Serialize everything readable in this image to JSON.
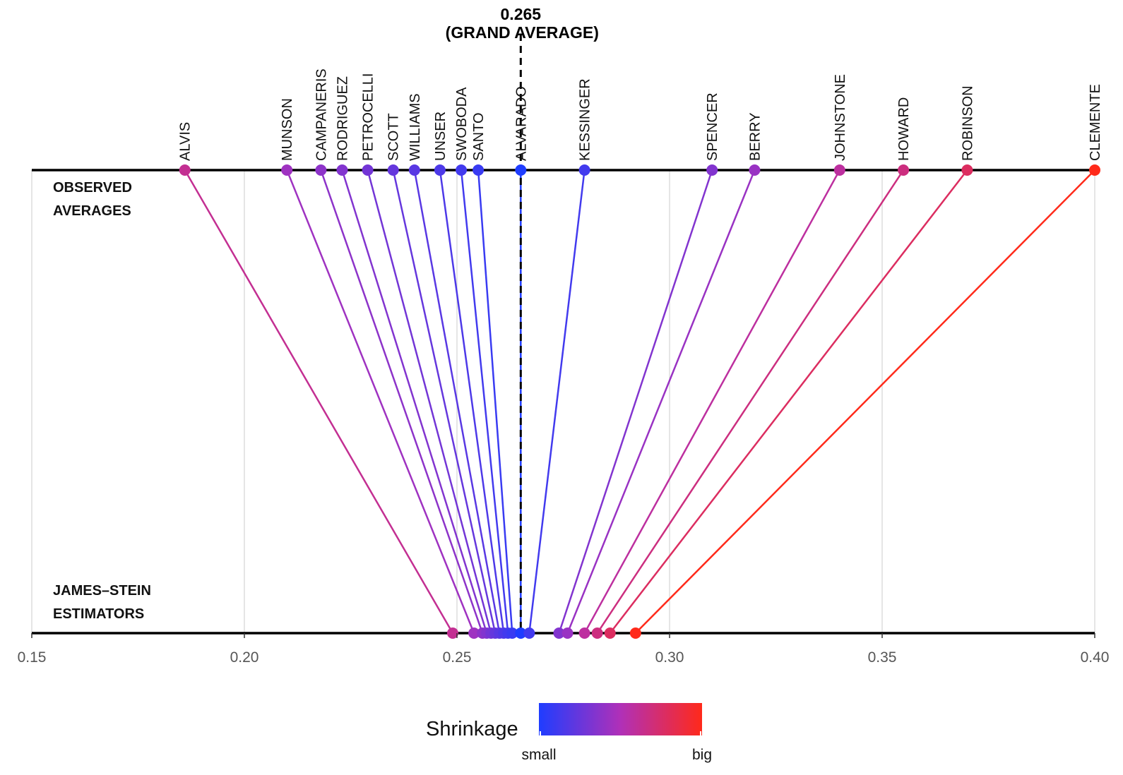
{
  "chart_data": {
    "type": "scatter",
    "title": "",
    "xlabel": "",
    "ylabel": "",
    "xlim": [
      0.15,
      0.4
    ],
    "x_ticks": [
      "0.15",
      "0.20",
      "0.25",
      "0.30",
      "0.35",
      "0.40"
    ],
    "x_tick_values": [
      0.15,
      0.2,
      0.25,
      0.3,
      0.35,
      0.4
    ],
    "grand_average": {
      "value": 0.265,
      "label_value": "0.265",
      "label_text": "(GRAND AVERAGE)"
    },
    "row_labels": {
      "observed": [
        "OBSERVED",
        "AVERAGES"
      ],
      "james_stein": [
        "JAMES–STEIN",
        "ESTIMATORS"
      ]
    },
    "legend": {
      "title": "Shrinkage",
      "low_label": "small",
      "high_label": "big",
      "low_color": "#1f3dff",
      "mid_color": "#b030b8",
      "high_color": "#ff2a1a"
    },
    "players": [
      {
        "name": "ALVIS",
        "observed": 0.186,
        "james_stein": 0.249,
        "shrinkage": 0.62
      },
      {
        "name": "MUNSON",
        "observed": 0.21,
        "james_stein": 0.254,
        "shrinkage": 0.44
      },
      {
        "name": "CAMPANERIS",
        "observed": 0.218,
        "james_stein": 0.256,
        "shrinkage": 0.38
      },
      {
        "name": "RODRIGUEZ",
        "observed": 0.223,
        "james_stein": 0.257,
        "shrinkage": 0.34
      },
      {
        "name": "PETROCELLI",
        "observed": 0.229,
        "james_stein": 0.258,
        "shrinkage": 0.29
      },
      {
        "name": "SCOTT",
        "observed": 0.235,
        "james_stein": 0.259,
        "shrinkage": 0.24
      },
      {
        "name": "WILLIAMS",
        "observed": 0.24,
        "james_stein": 0.26,
        "shrinkage": 0.2
      },
      {
        "name": "UNSER",
        "observed": 0.246,
        "james_stein": 0.261,
        "shrinkage": 0.16
      },
      {
        "name": "SWOBODA",
        "observed": 0.251,
        "james_stein": 0.262,
        "shrinkage": 0.12
      },
      {
        "name": "SANTO",
        "observed": 0.255,
        "james_stein": 0.263,
        "shrinkage": 0.09
      },
      {
        "name": "ALVARADO",
        "observed": 0.265,
        "james_stein": 0.265,
        "shrinkage": 0.0
      },
      {
        "name": "KESSINGER",
        "observed": 0.28,
        "james_stein": 0.267,
        "shrinkage": 0.12
      },
      {
        "name": "SPENCER",
        "observed": 0.31,
        "james_stein": 0.274,
        "shrinkage": 0.34
      },
      {
        "name": "BERRY",
        "observed": 0.32,
        "james_stein": 0.276,
        "shrinkage": 0.42
      },
      {
        "name": "JOHNSTONE",
        "observed": 0.34,
        "james_stein": 0.28,
        "shrinkage": 0.58
      },
      {
        "name": "HOWARD",
        "observed": 0.355,
        "james_stein": 0.283,
        "shrinkage": 0.68
      },
      {
        "name": "ROBINSON",
        "observed": 0.37,
        "james_stein": 0.286,
        "shrinkage": 0.78
      },
      {
        "name": "CLEMENTE",
        "observed": 0.4,
        "james_stein": 0.292,
        "shrinkage": 1.0
      }
    ]
  }
}
